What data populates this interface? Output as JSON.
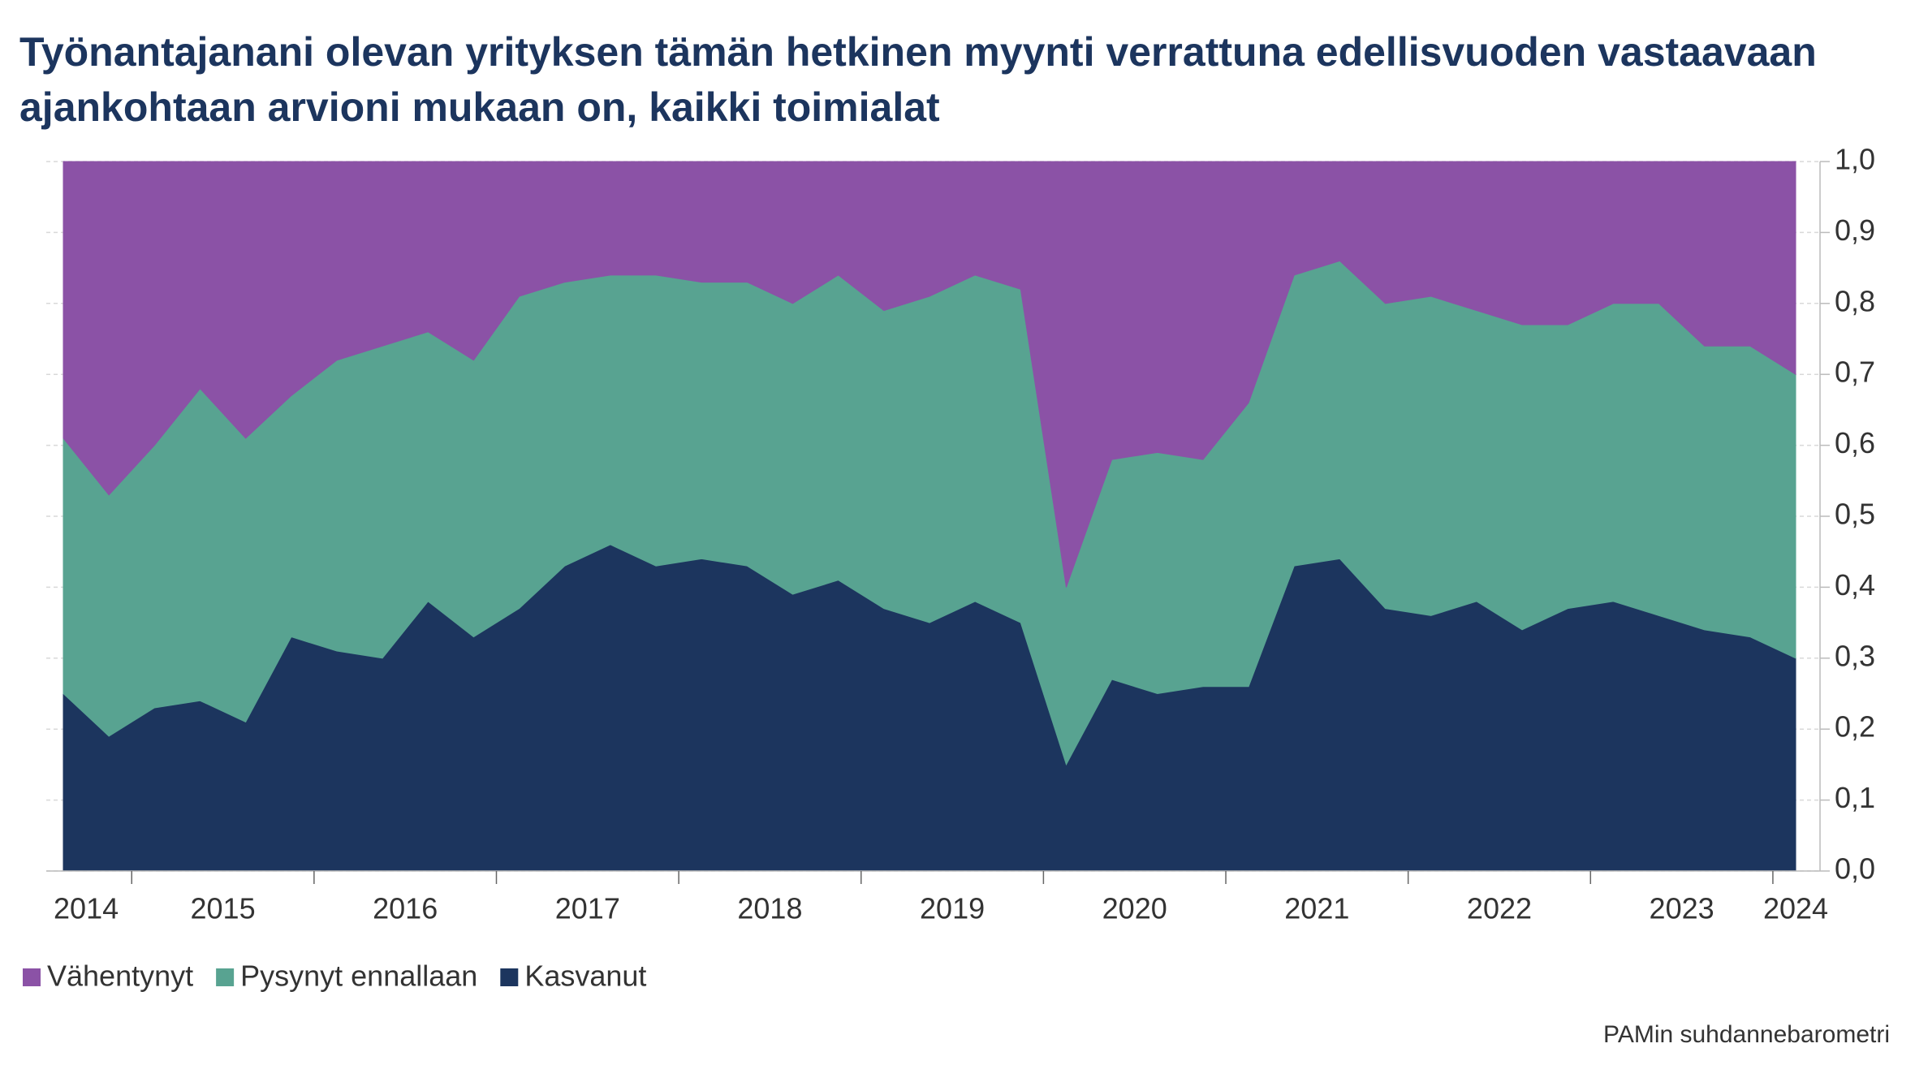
{
  "chart_data": {
    "type": "stacked_area",
    "title": "Työnantajanani olevan yrityksen tämän hetkinen myynti verrattuna edellisvuoden vastaavaan ajankohtaan arvioni mukaan on, kaikki toimialat",
    "source": "PAMin suhdannebarometri",
    "categories": [
      "2014",
      null,
      "2015",
      null,
      null,
      null,
      "2016",
      null,
      null,
      null,
      "2017",
      null,
      null,
      null,
      "2018",
      null,
      null,
      null,
      "2019",
      null,
      null,
      null,
      "2020",
      null,
      null,
      null,
      "2021",
      null,
      null,
      null,
      "2022",
      null,
      null,
      null,
      "2023",
      null,
      null,
      null,
      "2024"
    ],
    "series": [
      {
        "name": "Vähentynyt",
        "color": "#8b52a6",
        "values": [
          0.39,
          0.47,
          0.4,
          0.32,
          0.39,
          0.33,
          0.28,
          0.26,
          0.24,
          0.28,
          0.19,
          0.17,
          0.16,
          0.16,
          0.17,
          0.17,
          0.2,
          0.16,
          0.21,
          0.19,
          0.16,
          0.18,
          0.6,
          0.42,
          0.41,
          0.42,
          0.34,
          0.16,
          0.14,
          0.2,
          0.19,
          0.21,
          0.23,
          0.23,
          0.2,
          0.2,
          0.26,
          0.26,
          0.3
        ]
      },
      {
        "name": "Pysynyt ennallaan",
        "color": "#58a391",
        "values": [
          0.36,
          0.34,
          0.37,
          0.44,
          0.4,
          0.34,
          0.41,
          0.44,
          0.38,
          0.39,
          0.44,
          0.4,
          0.38,
          0.41,
          0.39,
          0.4,
          0.41,
          0.43,
          0.42,
          0.46,
          0.46,
          0.47,
          0.25,
          0.31,
          0.34,
          0.32,
          0.4,
          0.41,
          0.42,
          0.43,
          0.45,
          0.41,
          0.43,
          0.4,
          0.42,
          0.44,
          0.4,
          0.41,
          0.4
        ]
      },
      {
        "name": "Kasvanut",
        "color": "#1c355e",
        "values": [
          0.25,
          0.19,
          0.23,
          0.24,
          0.21,
          0.33,
          0.31,
          0.3,
          0.38,
          0.33,
          0.37,
          0.43,
          0.46,
          0.43,
          0.44,
          0.43,
          0.39,
          0.41,
          0.37,
          0.35,
          0.38,
          0.35,
          0.15,
          0.27,
          0.25,
          0.26,
          0.26,
          0.43,
          0.44,
          0.37,
          0.36,
          0.38,
          0.34,
          0.37,
          0.38,
          0.36,
          0.34,
          0.33,
          0.3
        ]
      }
    ],
    "ylim": [
      0,
      1
    ],
    "yticks": [
      {
        "value": 0,
        "label": "0,0"
      },
      {
        "value": 0.1,
        "label": "0,1"
      },
      {
        "value": 0.2,
        "label": "0,2"
      },
      {
        "value": 0.3,
        "label": "0,3"
      },
      {
        "value": 0.4,
        "label": "0,4"
      },
      {
        "value": 0.5,
        "label": "0,5"
      },
      {
        "value": 0.6,
        "label": "0,6"
      },
      {
        "value": 0.7,
        "label": "0,7"
      },
      {
        "value": 0.8,
        "label": "0,8"
      },
      {
        "value": 0.9,
        "label": "0,9"
      },
      {
        "value": 1,
        "label": "1,0"
      }
    ],
    "grid": true,
    "legend": "bottom-left"
  }
}
